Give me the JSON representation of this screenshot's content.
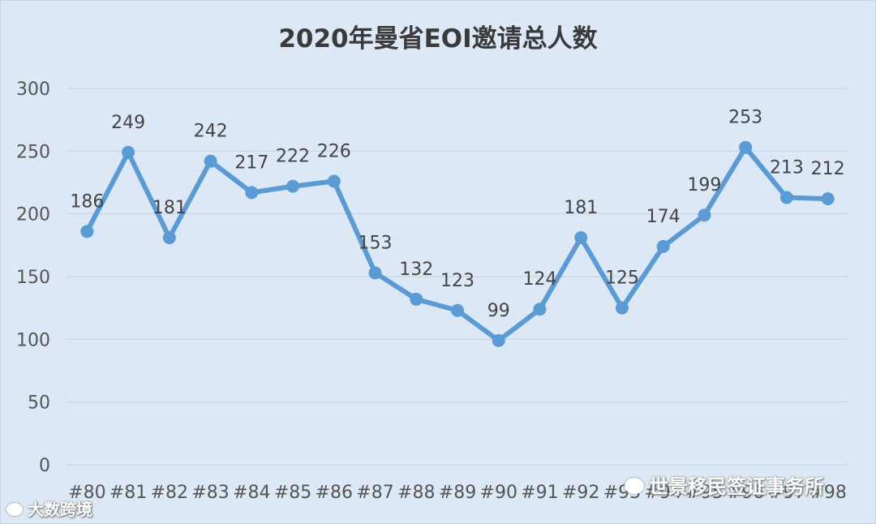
{
  "chart_data": {
    "type": "line",
    "title": "2020年曼省EOI邀请总人数",
    "categories": [
      "#80",
      "#81",
      "#82",
      "#83",
      "#84",
      "#85",
      "#86",
      "#87",
      "#88",
      "#89",
      "#90",
      "#91",
      "#92",
      "#93",
      "#94",
      "#95",
      "#96",
      "#97",
      "#98"
    ],
    "series": [
      {
        "values": [
          186,
          249,
          181,
          242,
          217,
          222,
          226,
          153,
          132,
          123,
          99,
          124,
          181,
          125,
          174,
          199,
          253,
          213,
          212
        ]
      }
    ],
    "yticks": [
      0,
      50,
      100,
      150,
      200,
      250,
      300
    ],
    "ylim": [
      0,
      300
    ],
    "grid": true,
    "legend": "none",
    "colors": {
      "line": "#5b9bd5",
      "grid": "#c9d4e0",
      "background": "#dce8f5"
    }
  },
  "watermarks": {
    "right": "世景移民签证事务所",
    "left": "大数跨境"
  }
}
